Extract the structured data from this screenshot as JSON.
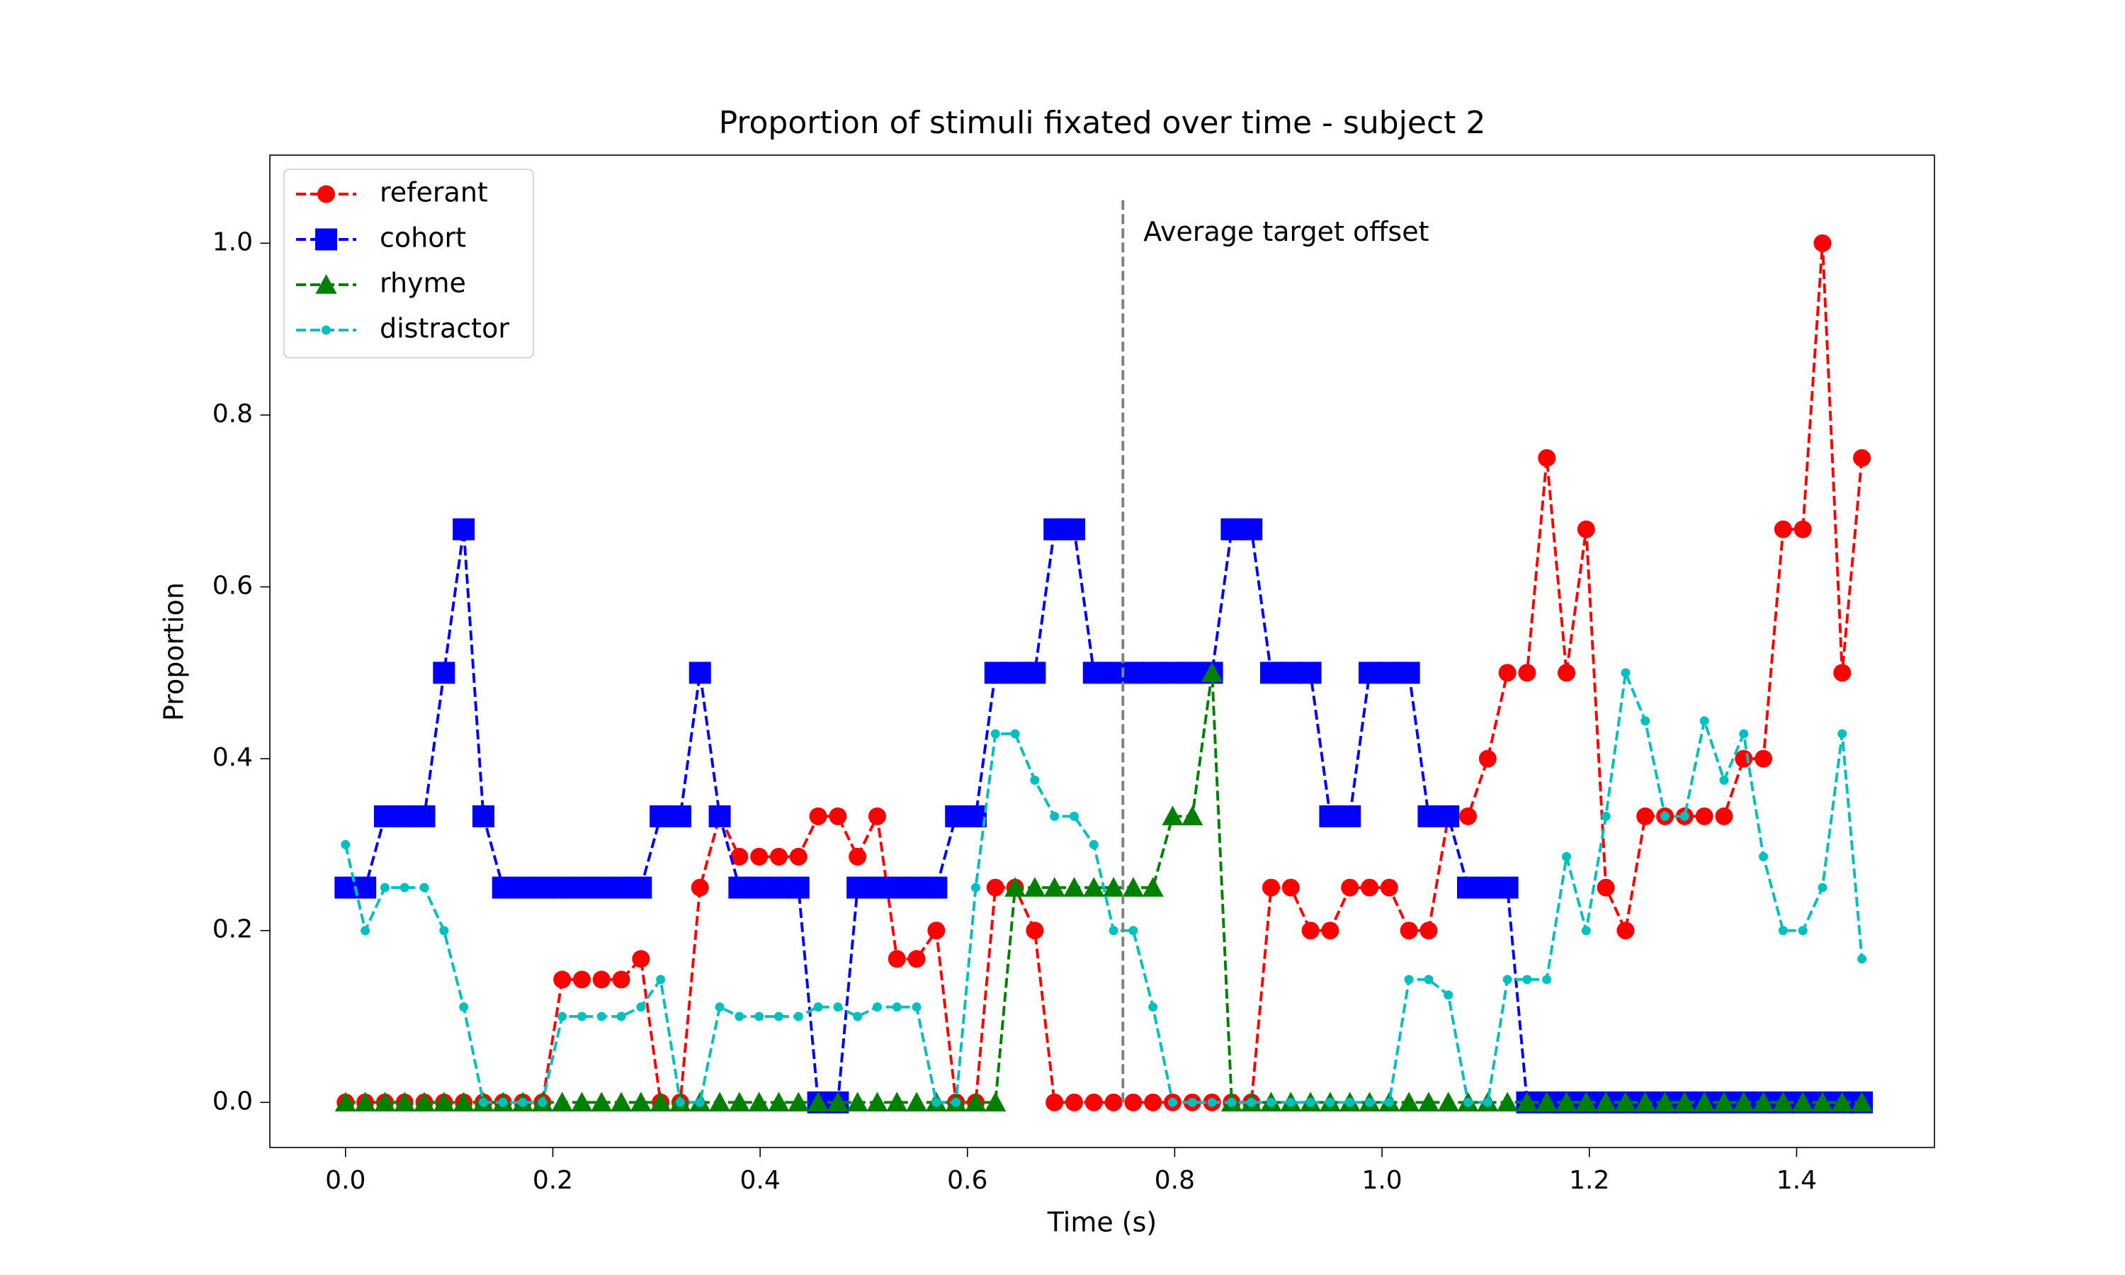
{
  "chart_data": {
    "type": "line",
    "title": "Proportion of stimuli fixated over time - subject 2",
    "xlabel": "Time (s)",
    "ylabel": "Proportion",
    "x": [
      0,
      0.019,
      0.038,
      0.057,
      0.076,
      0.095,
      0.114,
      0.133,
      0.152,
      0.171,
      0.19,
      0.209,
      0.228,
      0.247,
      0.266,
      0.285,
      0.304,
      0.323,
      0.342,
      0.361,
      0.38,
      0.399,
      0.418,
      0.437,
      0.456,
      0.475,
      0.494,
      0.513,
      0.532,
      0.551,
      0.57,
      0.589,
      0.608,
      0.627,
      0.646,
      0.665,
      0.684,
      0.703,
      0.722,
      0.741,
      0.76,
      0.779,
      0.798,
      0.817,
      0.836,
      0.855,
      0.874,
      0.893,
      0.912,
      0.931,
      0.95,
      0.969,
      0.988,
      1.007,
      1.026,
      1.045,
      1.064,
      1.083,
      1.102,
      1.121,
      1.14,
      1.159,
      1.178,
      1.197,
      1.216,
      1.235,
      1.254,
      1.273,
      1.292,
      1.311,
      1.33,
      1.349,
      1.368,
      1.387,
      1.406,
      1.425,
      1.444,
      1.463
    ],
    "series": [
      {
        "name": "referant",
        "color": "#ff0000",
        "marker": "o",
        "values": [
          0,
          0,
          0,
          0,
          0,
          0,
          0,
          0,
          0,
          0,
          0,
          0.143,
          0.143,
          0.143,
          0.143,
          0.167,
          0,
          0,
          0.25,
          0.333,
          0.286,
          0.286,
          0.286,
          0.286,
          0.333,
          0.333,
          0.286,
          0.333,
          0.167,
          0.167,
          0.2,
          0,
          0,
          0.25,
          0.25,
          0.2,
          0,
          0,
          0,
          0,
          0,
          0,
          0,
          0,
          0,
          0,
          0,
          0.25,
          0.25,
          0.2,
          0.2,
          0.25,
          0.25,
          0.25,
          0.2,
          0.2,
          0.333,
          0.333,
          0.4,
          0.5,
          0.5,
          0.75,
          0.5,
          0.667,
          0.25,
          0.2,
          0.333,
          0.333,
          0.333,
          0.333,
          0.333,
          0.4,
          0.4,
          0.667,
          0.667,
          1.0,
          0.5,
          0.75
        ]
      },
      {
        "name": "cohort",
        "color": "#0000ff",
        "marker": "s",
        "values": [
          0.25,
          0.25,
          0.333,
          0.333,
          0.333,
          0.5,
          0.667,
          0.333,
          0.25,
          0.25,
          0.25,
          0.25,
          0.25,
          0.25,
          0.25,
          0.25,
          0.333,
          0.333,
          0.5,
          0.333,
          0.25,
          0.25,
          0.25,
          0.25,
          0,
          0,
          0.25,
          0.25,
          0.25,
          0.25,
          0.25,
          0.333,
          0.333,
          0.5,
          0.5,
          0.5,
          0.667,
          0.667,
          0.5,
          0.5,
          0.5,
          0.5,
          0.5,
          0.5,
          0.5,
          0.667,
          0.667,
          0.5,
          0.5,
          0.5,
          0.333,
          0.333,
          0.5,
          0.5,
          0.5,
          0.333,
          0.333,
          0.25,
          0.25,
          0.25,
          0,
          0,
          0,
          0,
          0,
          0,
          0,
          0,
          0,
          0,
          0,
          0,
          0,
          0,
          0,
          0,
          0,
          0
        ]
      },
      {
        "name": "rhyme",
        "color": "#008000",
        "marker": "^",
        "values": [
          0,
          0,
          0,
          0,
          0,
          0,
          0,
          0,
          0,
          0,
          0,
          0,
          0,
          0,
          0,
          0,
          0,
          0,
          0,
          0,
          0,
          0,
          0,
          0,
          0,
          0,
          0,
          0,
          0,
          0,
          0,
          0,
          0,
          0,
          0.25,
          0.25,
          0.25,
          0.25,
          0.25,
          0.25,
          0.25,
          0.25,
          0.333,
          0.333,
          0.5,
          0,
          0,
          0,
          0,
          0,
          0,
          0,
          0,
          0,
          0,
          0,
          0,
          0,
          0,
          0,
          0,
          0,
          0,
          0,
          0,
          0,
          0,
          0,
          0,
          0,
          0,
          0,
          0,
          0,
          0,
          0,
          0,
          0
        ]
      },
      {
        "name": "distractor",
        "color": "#00bfbf",
        "marker": ".",
        "values": [
          0.3,
          0.2,
          0.25,
          0.25,
          0.25,
          0.2,
          0.111,
          0,
          0,
          0,
          0,
          0.1,
          0.1,
          0.1,
          0.1,
          0.111,
          0.143,
          0,
          0,
          0.111,
          0.1,
          0.1,
          0.1,
          0.1,
          0.111,
          0.111,
          0.1,
          0.111,
          0.111,
          0.111,
          0,
          0,
          0.25,
          0.429,
          0.429,
          0.375,
          0.333,
          0.333,
          0.3,
          0.2,
          0.2,
          0.111,
          0,
          0,
          0,
          0,
          0,
          0,
          0,
          0,
          0,
          0,
          0,
          0,
          0.143,
          0.143,
          0.125,
          0,
          0,
          0.143,
          0.143,
          0.143,
          0.286,
          0.2,
          0.333,
          0.5,
          0.444,
          0.333,
          0.333,
          0.444,
          0.375,
          0.429,
          0.286,
          0.2,
          0.2,
          0.25,
          0.429,
          0.167
        ]
      }
    ],
    "vlines": [
      {
        "x": 0.75,
        "ymin": 0,
        "ymax": 1.05,
        "color": "#808080",
        "label": "Average target offset"
      }
    ],
    "xlim": [
      -0.073,
      1.533
    ],
    "ylim": [
      -0.0525,
      1.1025
    ],
    "xticks": [
      {
        "value": 0,
        "label": "0.0"
      },
      0.2,
      0.4,
      0.6,
      0.8,
      {
        "value": 1,
        "label": "1.0"
      },
      1.2,
      1.4
    ],
    "yticks": [
      {
        "value": 0,
        "label": "0.0"
      },
      0.2,
      0.4,
      0.6,
      0.8,
      {
        "value": 1,
        "label": "1.0"
      }
    ],
    "grid": false,
    "legend": "upper left"
  }
}
